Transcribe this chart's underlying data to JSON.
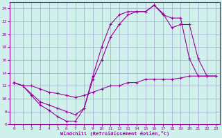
{
  "xlabel": "Windchill (Refroidissement éolien,°C)",
  "bg_color": "#d0f0ec",
  "grid_color": "#a0a8c8",
  "line_color": "#990099",
  "xlim": [
    -0.5,
    23.5
  ],
  "ylim": [
    6,
    25
  ],
  "yticks": [
    6,
    8,
    10,
    12,
    14,
    16,
    18,
    20,
    22,
    24
  ],
  "xticks": [
    0,
    1,
    2,
    3,
    4,
    5,
    6,
    7,
    8,
    9,
    10,
    11,
    12,
    13,
    14,
    15,
    16,
    17,
    18,
    19,
    20,
    21,
    22,
    23
  ],
  "line1_x": [
    0,
    1,
    2,
    3,
    4,
    5,
    6,
    7,
    8,
    9,
    10,
    11,
    12,
    13,
    14,
    15,
    16,
    17,
    18,
    19,
    20,
    21,
    22,
    23
  ],
  "line1_y": [
    12.5,
    12.0,
    10.5,
    9.0,
    8.2,
    7.2,
    6.5,
    6.5,
    8.5,
    13.5,
    18.0,
    21.5,
    23.0,
    23.5,
    23.5,
    23.5,
    24.5,
    23.0,
    22.5,
    22.5,
    16.2,
    13.5,
    13.5,
    13.5
  ],
  "line2_x": [
    0,
    1,
    3,
    4,
    5,
    6,
    7,
    8,
    9,
    10,
    11,
    12,
    13,
    14,
    15,
    16,
    17,
    18,
    19,
    20,
    21,
    22,
    23
  ],
  "line2_y": [
    12.5,
    12.0,
    9.5,
    9.0,
    8.5,
    8.0,
    7.5,
    8.5,
    13.0,
    16.0,
    19.5,
    21.5,
    23.0,
    23.5,
    23.5,
    24.5,
    23.2,
    21.0,
    21.5,
    21.5,
    16.2,
    13.5,
    13.5
  ],
  "line3_x": [
    0,
    1,
    2,
    3,
    4,
    5,
    6,
    7,
    8,
    9,
    10,
    11,
    12,
    13,
    14,
    15,
    16,
    17,
    18,
    19,
    20,
    21,
    22,
    23
  ],
  "line3_y": [
    12.5,
    12.0,
    12.0,
    11.5,
    11.0,
    10.8,
    10.5,
    10.2,
    10.5,
    11.0,
    11.5,
    12.0,
    12.0,
    12.5,
    12.5,
    13.0,
    13.0,
    13.0,
    13.0,
    13.2,
    13.5,
    13.5,
    13.5,
    13.5
  ]
}
